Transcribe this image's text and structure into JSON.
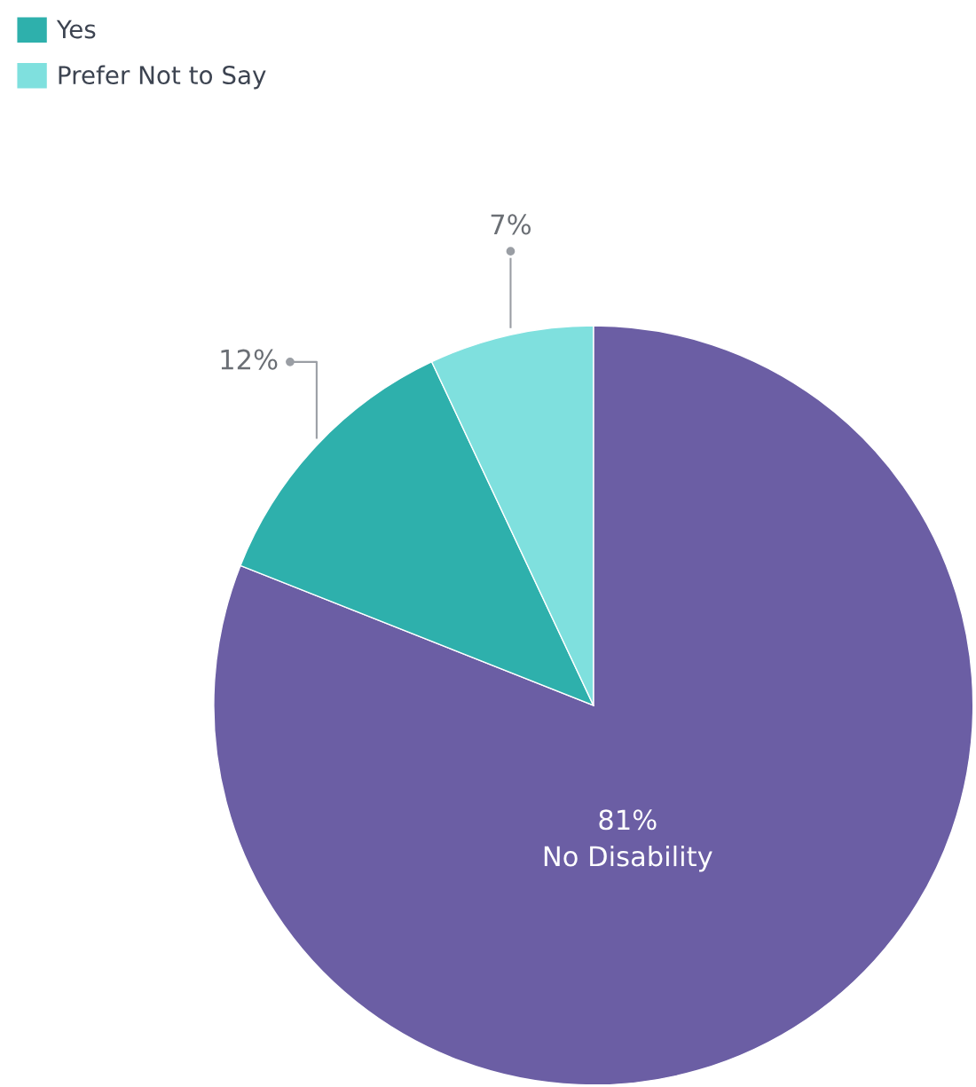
{
  "chart_data": {
    "type": "pie",
    "categories": [
      "No Disability",
      "Yes",
      "Prefer Not to Say"
    ],
    "values": [
      81,
      12,
      7
    ],
    "colors": [
      "#6b5ea4",
      "#2eb0ac",
      "#7fe0de"
    ],
    "value_labels": [
      "81%",
      "12%",
      "7%"
    ],
    "legend": "top left"
  }
}
